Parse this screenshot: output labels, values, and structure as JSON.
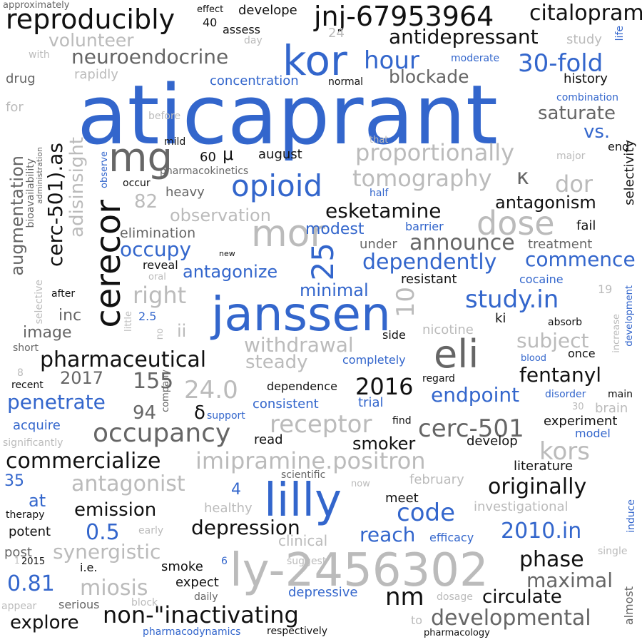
{
  "words": [
    "aticaprant",
    "janssen",
    "ly-2456302",
    "lilly",
    "eli",
    "cerecor",
    "mor",
    "kor",
    "mg",
    "dose",
    "opioid",
    "jnj-67953964",
    "reproducibly",
    "citalopram",
    "antidepressant",
    "neuroendocrine",
    "volunteer",
    "hour",
    "30-fold",
    "blockade",
    "concentration",
    "saturate",
    "vs.",
    "proportionally",
    "tomography",
    "κ",
    "dor",
    "antagonism",
    "esketamine",
    "cerc-501).as",
    "adisinsight",
    "augmentation",
    "occupy",
    "observation",
    "elimination",
    "modest",
    "announce",
    "commence",
    "antagonize",
    "dependently",
    "25",
    "10",
    "study.in",
    "minimal",
    "right",
    "withdrawal",
    "steady",
    "pharmaceutical",
    "subject",
    "fentanyl",
    "24.0",
    "2016",
    "endpoint",
    "penetrate",
    "155",
    "2017",
    "cerc-501",
    "occupancy",
    "receptor",
    "imipramine.positron",
    "kors",
    "commercialize",
    "antagonist",
    "originally",
    "code",
    "emission",
    "depression",
    "0.5",
    "reach",
    "2010.in",
    "synergistic",
    "phase",
    "maximal",
    "miosis",
    "0.81",
    "circulate",
    "nm",
    "non-\"inactivating",
    "explore",
    "developmental",
    "smoker",
    "develop",
    "literature",
    "healthy",
    "investigational",
    "efficacy",
    "depressive",
    "clinical",
    "potent",
    "therapy",
    "μ",
    "δ",
    "ii",
    "inc",
    "image",
    "94",
    "82",
    "60",
    "august",
    "mild",
    "pharmacokinetics",
    "heavy",
    "occur",
    "selectivity",
    "treatment",
    "fail",
    "barrier",
    "cocaine",
    "reveal",
    "oral",
    "resistant",
    "under",
    "new",
    "after",
    "little",
    "2.5",
    "ki",
    "absorb",
    "19",
    "development",
    "increase",
    "blood",
    "once",
    "nicotine",
    "side",
    "completely",
    "consistent",
    "dependence",
    "trial",
    "regard",
    "disorder",
    "main",
    "brain",
    "30",
    "model",
    "experiment",
    "find",
    "support",
    "acquire",
    "significantly",
    "read",
    "company",
    "35",
    "at",
    "4",
    "february",
    "now",
    "scientific",
    "meet",
    "induce",
    "early",
    "post",
    "2015",
    "i.e.",
    "smoke",
    "expect",
    "daily",
    "block",
    "serious",
    "appear",
    "pharmacodynamics",
    "respectively",
    "pharmacology",
    "to",
    "dosage",
    "single",
    "almost",
    "suggest",
    "6",
    "approximately",
    "effect",
    "develope",
    "40",
    "assess",
    "24",
    "with",
    "day",
    "study",
    "life",
    "moderate",
    "drug",
    "rapidly",
    "normal",
    "history",
    "for",
    "before",
    "combination",
    "major",
    "end",
    "observe",
    "administration",
    "bioavailability",
    "selective",
    "that",
    "half",
    "short",
    "8",
    "recent",
    "no",
    "1"
  ]
}
